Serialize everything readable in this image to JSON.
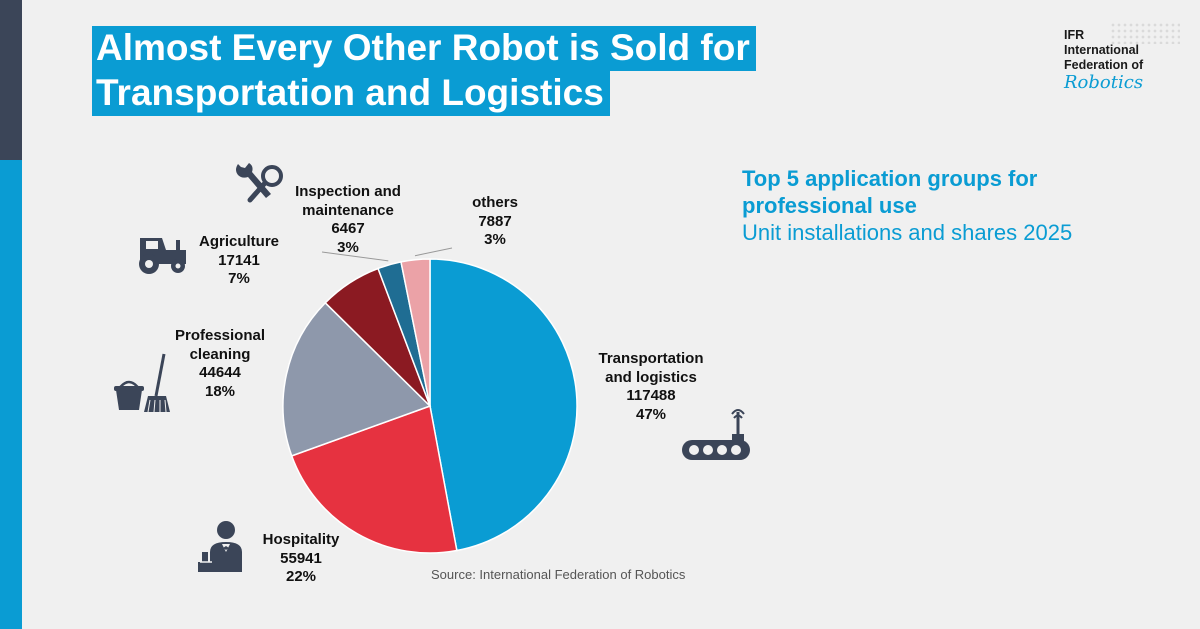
{
  "title": {
    "line1": "Almost Every Other Robot is Sold for",
    "line2": "Transportation and Logistics"
  },
  "logo": {
    "line1": "IFR",
    "line2": "International",
    "line3": "Federation of",
    "script": "Robotics"
  },
  "subtitle": {
    "line1": "Top 5 application groups for",
    "line2": "professional use",
    "line3": "Unit installations and shares 2025"
  },
  "source": "Source: International Federation of Robotics",
  "chart_data": {
    "type": "pie",
    "title": "Almost Every Other Robot is Sold for Transportation and Logistics",
    "subtitle": "Top 5 application groups for professional use — Unit installations and shares 2025",
    "slices": [
      {
        "name": "Transportation and logistics",
        "name_lines": [
          "Transportation",
          "and logistics"
        ],
        "value": 117488,
        "share": "47%",
        "color": "#0a9cd3"
      },
      {
        "name": "Hospitality",
        "name_lines": [
          "Hospitality"
        ],
        "value": 55941,
        "share": "22%",
        "color": "#e63240"
      },
      {
        "name": "Professional cleaning",
        "name_lines": [
          "Professional",
          "cleaning"
        ],
        "value": 44644,
        "share": "18%",
        "color": "#8e98ab"
      },
      {
        "name": "Agriculture",
        "name_lines": [
          "Agriculture"
        ],
        "value": 17141,
        "share": "7%",
        "color": "#8b1a22"
      },
      {
        "name": "Inspection and maintenance",
        "name_lines": [
          "Inspection and",
          "maintenance"
        ],
        "value": 6467,
        "share": "3%",
        "color": "#1f6d93"
      },
      {
        "name": "others",
        "name_lines": [
          "others"
        ],
        "value": 7887,
        "share": "3%",
        "color": "#eba2a7"
      }
    ],
    "start_angle": "12 o'clock, clockwise",
    "legend": "none (direct labels)"
  },
  "icons": [
    "robot-vehicle-icon",
    "waiter-icon",
    "cleaning-bucket-mop-icon",
    "tractor-icon",
    "wrench-magnifier-icon"
  ]
}
